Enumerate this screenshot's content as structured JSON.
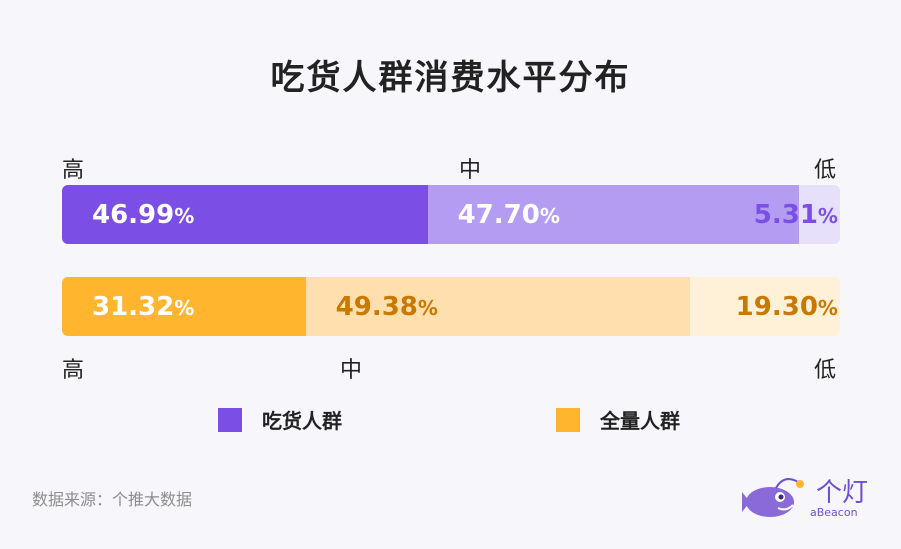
{
  "title": "吃货人群消费水平分布",
  "levels": {
    "high": "高",
    "mid": "中",
    "low": "低"
  },
  "source": "数据来源：个推大数据",
  "brand": {
    "cn": "个灯",
    "en": "aBeacon"
  },
  "legend": [
    {
      "name": "吃货人群",
      "color": "#7b4fe6"
    },
    {
      "name": "全量人群",
      "color": "#ffb52e"
    }
  ],
  "chart_data": {
    "type": "bar",
    "orientation": "horizontal-stacked-100",
    "title": "吃货人群消费水平分布",
    "categories": [
      "高",
      "中",
      "低"
    ],
    "series": [
      {
        "name": "吃货人群",
        "values": [
          46.99,
          47.7,
          5.31
        ],
        "labels": [
          "46.99",
          "47.70",
          "5.31"
        ],
        "unit": "%",
        "colors": [
          "#7b4fe6",
          "#b39cf2",
          "#e7e0fb"
        ],
        "label_colors": [
          "#ffffff",
          "#ffffff",
          "#7b4fe6"
        ]
      },
      {
        "name": "全量人群",
        "values": [
          31.32,
          49.38,
          19.3
        ],
        "labels": [
          "31.32",
          "49.38",
          "19.30"
        ],
        "unit": "%",
        "colors": [
          "#ffb52e",
          "#ffdfae",
          "#fff0d8"
        ],
        "label_colors": [
          "#ffffff",
          "#c97800",
          "#c97800"
        ]
      }
    ]
  }
}
